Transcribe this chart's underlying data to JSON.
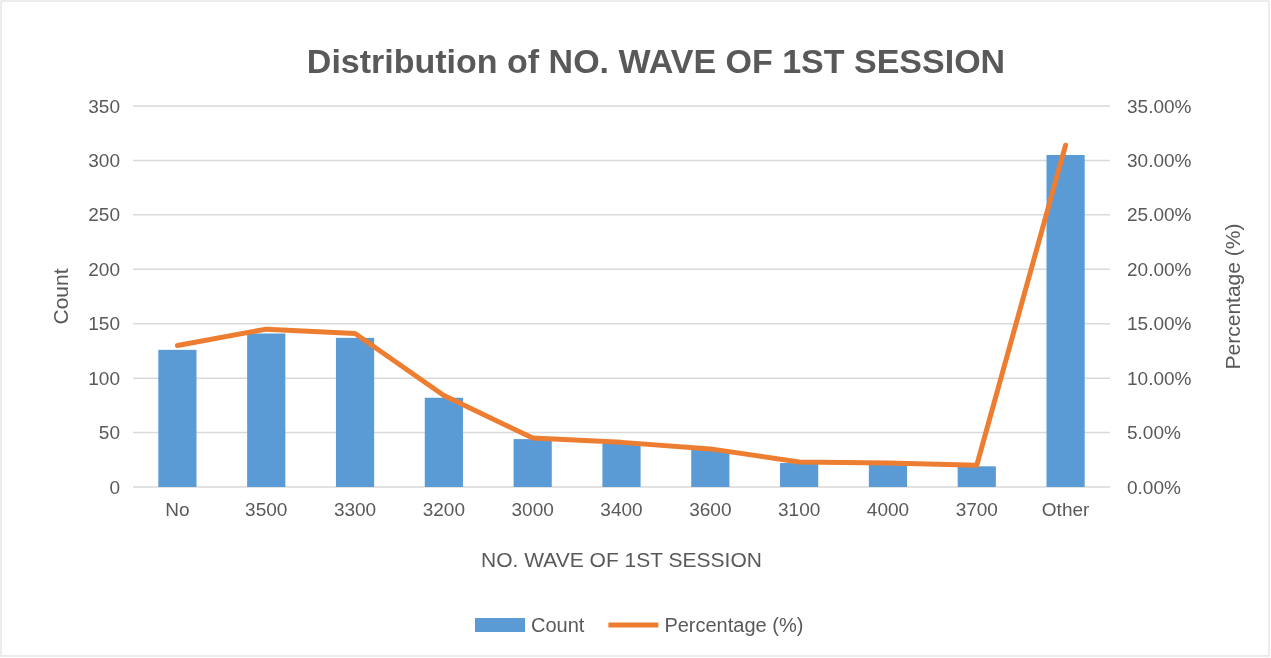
{
  "chart_data": {
    "type": "bar",
    "title": "Distribution of NO. WAVE OF 1ST SESSION",
    "xlabel": "NO. WAVE OF 1ST SESSION",
    "ylabel": "Count",
    "y2label": "Percentage (%)",
    "categories": [
      "No",
      "3500",
      "3300",
      "3200",
      "3000",
      "3400",
      "3600",
      "3100",
      "4000",
      "3700",
      "Other"
    ],
    "series": [
      {
        "name": "Count",
        "color": "#5b9bd5",
        "values": [
          126,
          141,
          137,
          82,
          44,
          40,
          34,
          22,
          21,
          19,
          305
        ]
      },
      {
        "name": "Percentage (%)",
        "type": "line",
        "axis": "y2",
        "color": "#ed7d31",
        "values": [
          13.0,
          14.5,
          14.1,
          8.4,
          4.5,
          4.1,
          3.5,
          2.3,
          2.2,
          2.0,
          31.4
        ]
      }
    ],
    "ylim": [
      0,
      350
    ],
    "yticks": [
      0,
      50,
      100,
      150,
      200,
      250,
      300,
      350
    ],
    "y2lim": [
      0,
      35
    ],
    "y2ticks": [
      {
        "value": 0,
        "label": "0.00%"
      },
      {
        "value": 5,
        "label": "5.00%"
      },
      {
        "value": 10,
        "label": "10.00%"
      },
      {
        "value": 15,
        "label": "15.00%"
      },
      {
        "value": 20,
        "label": "20.00%"
      },
      {
        "value": 25,
        "label": "25.00%"
      },
      {
        "value": 30,
        "label": "30.00%"
      },
      {
        "value": 35,
        "label": "35.00%"
      }
    ],
    "grid": "y",
    "legend": "bottom",
    "marker": "none"
  }
}
